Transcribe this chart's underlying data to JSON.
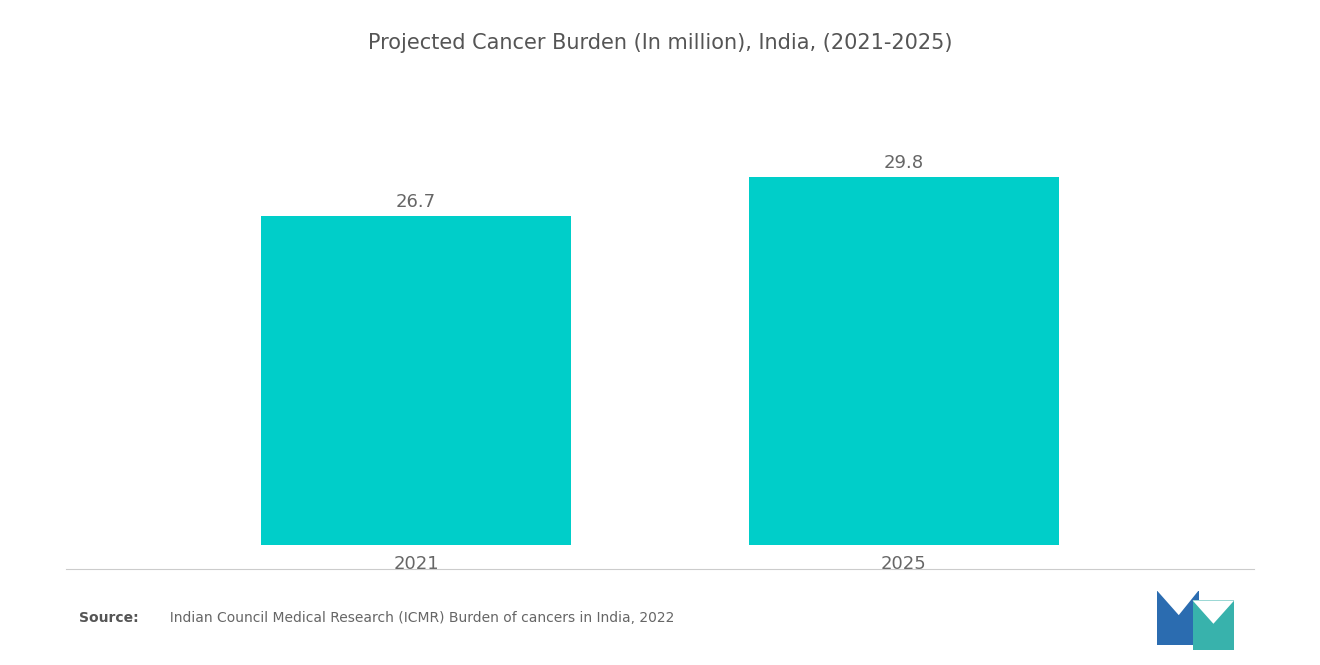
{
  "title": "Projected Cancer Burden (In million), India, (2021-2025)",
  "categories": [
    "2021",
    "2025"
  ],
  "values": [
    26.7,
    29.8
  ],
  "bar_color": "#00CEC9",
  "bar_width": 0.28,
  "title_fontsize": 15,
  "tick_fontsize": 13,
  "value_label_fontsize": 13,
  "background_color": "#ffffff",
  "source_bold": "Source:",
  "source_text": "  Indian Council Medical Research (ICMR) Burden of cancers in India, 2022",
  "ylim": [
    0,
    35
  ],
  "bar_positions": [
    0.28,
    0.72
  ]
}
